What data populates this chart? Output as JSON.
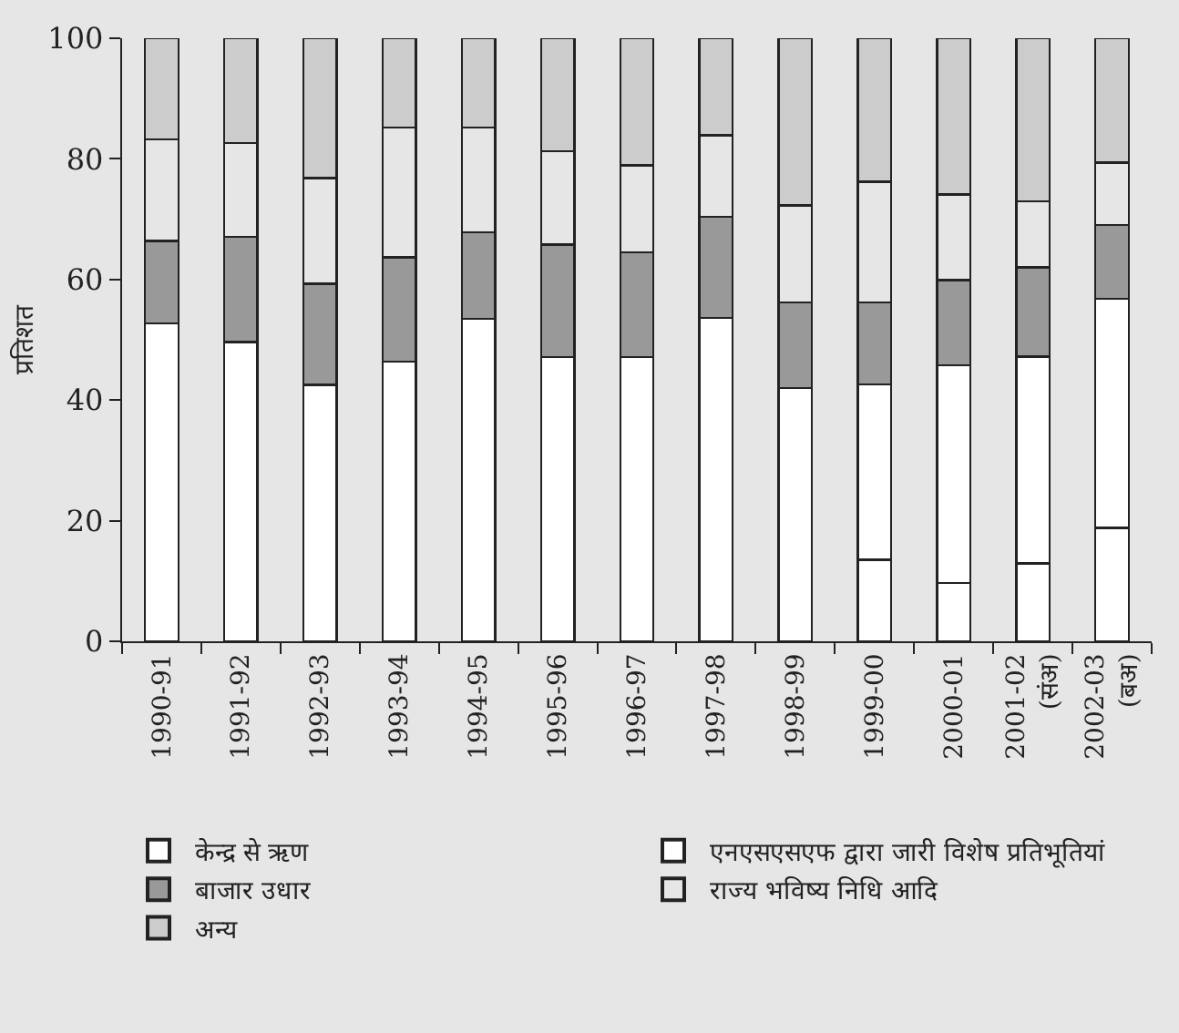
{
  "chart_data": {
    "type": "bar",
    "stacked": true,
    "ylabel": "प्रतिशत",
    "categories": [
      "1990-91",
      "1991-92",
      "1992-93",
      "1993-94",
      "1994-95",
      "1995-96",
      "1996-97",
      "1997-98",
      "1998-99",
      "1999-00",
      "2000-01",
      "2001-02\n(संअ)",
      "2002-03\n(बअ)"
    ],
    "series": [
      {
        "name": "एनएसएसएफ द्वारा जारी विशेष प्रतिभूतियां",
        "color": "#ffffff",
        "values": [
          null,
          null,
          null,
          null,
          null,
          null,
          null,
          null,
          null,
          13.5,
          9.7,
          12.9,
          18.8
        ]
      },
      {
        "name": "केन्द्र से ऋण",
        "color": "#ffffff",
        "values": [
          52.7,
          49.6,
          42.5,
          46.4,
          53.5,
          47.1,
          47.1,
          53.6,
          42.0,
          29.1,
          36.1,
          34.3,
          38.0
        ]
      },
      {
        "name": "बाजार उधार",
        "color": "#999999",
        "values": [
          13.7,
          17.5,
          16.8,
          17.3,
          14.3,
          18.7,
          17.4,
          16.8,
          14.2,
          13.6,
          14.1,
          14.8,
          12.2
        ]
      },
      {
        "name": "राज्य भविष्य निधि आदि",
        "color": "#e6e6e6",
        "values": [
          16.8,
          15.5,
          17.5,
          21.5,
          17.4,
          15.5,
          14.4,
          13.5,
          16.1,
          20.0,
          14.2,
          11.0,
          10.4
        ]
      },
      {
        "name": "अन्य",
        "color": "#cccccc",
        "values": [
          16.8,
          17.4,
          23.2,
          14.8,
          14.8,
          18.7,
          21.1,
          16.1,
          27.7,
          23.8,
          25.9,
          27.0,
          20.6
        ]
      }
    ],
    "ylim": [
      0,
      100
    ],
    "yticks": [
      0,
      20,
      40,
      60,
      80,
      100
    ],
    "grid": false,
    "legend": "bottom"
  }
}
